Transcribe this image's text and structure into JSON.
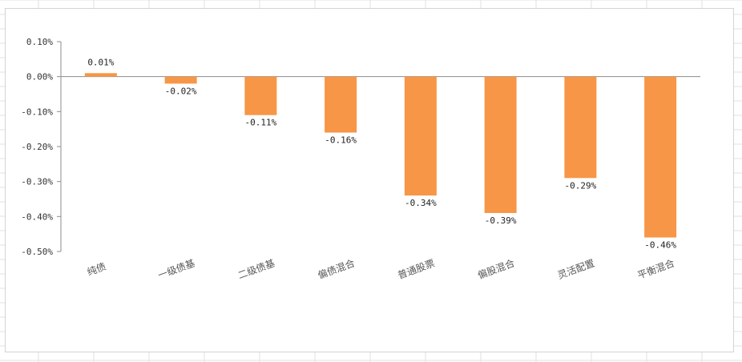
{
  "chart_data": {
    "type": "bar",
    "title": "",
    "xlabel": "",
    "ylabel": "",
    "categories": [
      "纯债",
      "一级债基",
      "二级债基",
      "偏债混合",
      "普通股票",
      "偏股混合",
      "灵活配置",
      "平衡混合"
    ],
    "values": [
      0.01,
      -0.02,
      -0.11,
      -0.16,
      -0.34,
      -0.39,
      -0.29,
      -0.46
    ],
    "value_labels": [
      "0.01%",
      "-0.02%",
      "-0.11%",
      "-0.16%",
      "-0.34%",
      "-0.39%",
      "-0.29%",
      "-0.46%"
    ],
    "ylim": [
      -0.5,
      0.1
    ],
    "yticks": [
      0.1,
      0.0,
      -0.1,
      -0.2,
      -0.3,
      -0.4,
      -0.5
    ],
    "ytick_labels": [
      "0.10%",
      "0.00%",
      "-0.10%",
      "-0.20%",
      "-0.30%",
      "-0.40%",
      "-0.50%"
    ],
    "grid": false,
    "legend": "none",
    "bar_color": "#F79646"
  }
}
